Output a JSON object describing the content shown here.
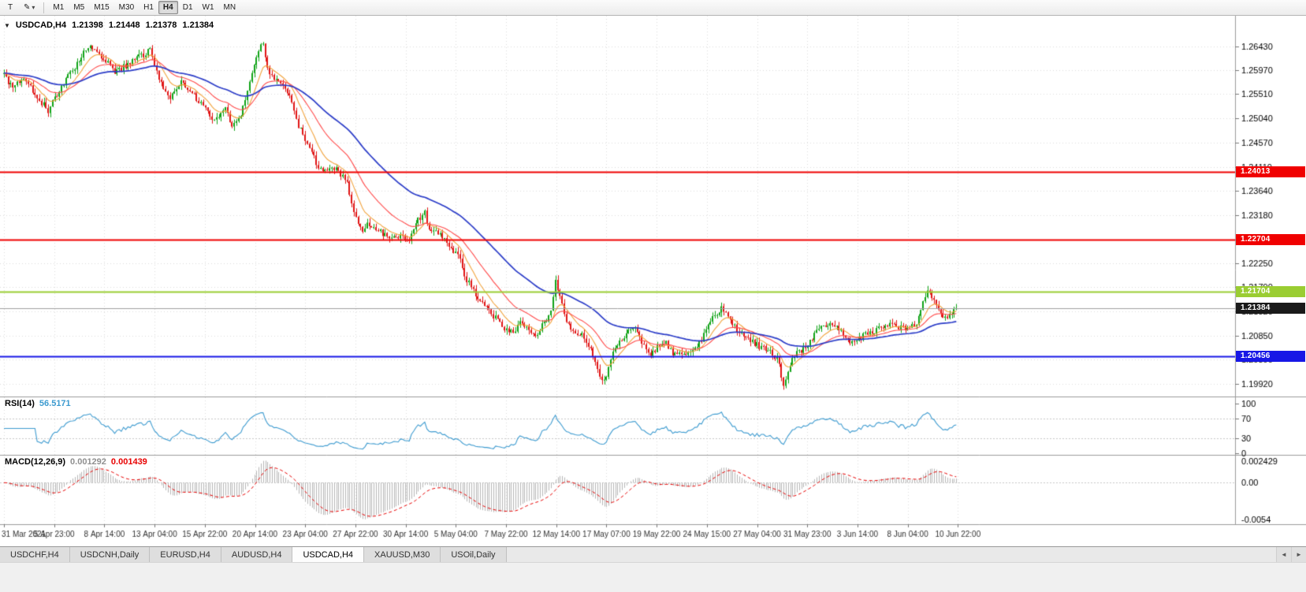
{
  "colors": {
    "up": "#0fa316",
    "down": "#e01414",
    "rsi": "#3d9bd0",
    "macd_hist": "#b6b6b6",
    "macd_signal": "#e80000",
    "badge_current": "#1a1a1a"
  },
  "toolbar": {
    "tool_label": "T",
    "draw_icon": "✎",
    "dropdown_icon": "▾",
    "timeframes": [
      "M1",
      "M5",
      "M15",
      "M30",
      "H1",
      "H4",
      "D1",
      "W1",
      "MN"
    ],
    "active_timeframe": "H4"
  },
  "chart": {
    "collapse_icon": "▼",
    "symbol": "USDCAD,H4",
    "ohlc": {
      "open": "1.21398",
      "high": "1.21448",
      "low": "1.21378",
      "close": "1.21384"
    }
  },
  "rsi": {
    "name": "RSI(14)",
    "value": "56.5171",
    "levels": [
      100,
      70,
      30,
      0
    ]
  },
  "macd": {
    "name": "MACD(12,26,9)",
    "value_main": "0.001292",
    "value_signal": "0.001439",
    "scale_labels": [
      "0.002429",
      "0.00",
      "-0.0054"
    ]
  },
  "time_axis": {
    "labels": [
      "31 Mar 2021",
      "5 Apr 23:00",
      "8 Apr 14:00",
      "13 Apr 04:00",
      "15 Apr 22:00",
      "20 Apr 14:00",
      "23 Apr 04:00",
      "27 Apr 22:00",
      "30 Apr 14:00",
      "5 May 04:00",
      "7 May 22:00",
      "12 May 14:00",
      "17 May 07:00",
      "19 May 22:00",
      "24 May 15:00",
      "27 May 04:00",
      "31 May 23:00",
      "3 Jun 14:00",
      "8 Jun 04:00",
      "10 Jun 22:00"
    ]
  },
  "tabs": {
    "items": [
      {
        "label": "USDCHF,H4"
      },
      {
        "label": "USDCNH,Daily"
      },
      {
        "label": "EURUSD,H4"
      },
      {
        "label": "AUDUSD,H4"
      },
      {
        "label": "USDCAD,H4"
      },
      {
        "label": "XAUUSD,M30"
      },
      {
        "label": "USOil,Daily"
      }
    ],
    "active_index": 4,
    "scroll_left": "◄",
    "scroll_right": "►"
  },
  "chart_data": {
    "type": "candlestick",
    "symbol": "USDCAD",
    "timeframe": "H4",
    "current_price": 1.21384,
    "visible_range": {
      "min": 1.19677,
      "max": 1.27023
    },
    "y_ticks": [
      1.2643,
      1.2597,
      1.2551,
      1.2504,
      1.2457,
      1.2411,
      1.2364,
      1.2318,
      1.2271,
      1.2225,
      1.2179,
      1.2132,
      1.2085,
      1.2039,
      1.1992
    ],
    "candle_count": 431,
    "synth": {
      "seed": 20210611,
      "noise": 0.0012,
      "wick": 0.0009
    },
    "price_path_anchors": [
      [
        0,
        1.259
      ],
      [
        4,
        1.256
      ],
      [
        9,
        1.2585
      ],
      [
        14,
        1.255
      ],
      [
        20,
        1.252
      ],
      [
        25,
        1.256
      ],
      [
        30,
        1.259
      ],
      [
        36,
        1.263
      ],
      [
        39,
        1.2641
      ],
      [
        44,
        1.2625
      ],
      [
        50,
        1.2595
      ],
      [
        55,
        1.2605
      ],
      [
        60,
        1.262
      ],
      [
        66,
        1.2636
      ],
      [
        71,
        1.257
      ],
      [
        75,
        1.254
      ],
      [
        80,
        1.2575
      ],
      [
        85,
        1.2555
      ],
      [
        91,
        1.252
      ],
      [
        94,
        1.2505
      ],
      [
        100,
        1.252
      ],
      [
        103,
        1.249
      ],
      [
        107,
        1.251
      ],
      [
        110,
        1.256
      ],
      [
        114,
        1.2625
      ],
      [
        117,
        1.2652
      ],
      [
        119,
        1.2598
      ],
      [
        123,
        1.2575
      ],
      [
        126,
        1.2572
      ],
      [
        130,
        1.254
      ],
      [
        133,
        1.249
      ],
      [
        137,
        1.2452
      ],
      [
        141,
        1.242
      ],
      [
        144,
        1.24
      ],
      [
        148,
        1.2412
      ],
      [
        151,
        1.24
      ],
      [
        155,
        1.2382
      ],
      [
        158,
        1.232
      ],
      [
        162,
        1.229
      ],
      [
        165,
        1.2302
      ],
      [
        169,
        1.2286
      ],
      [
        173,
        1.228
      ],
      [
        176,
        1.2272
      ],
      [
        180,
        1.2276
      ],
      [
        183,
        1.227
      ],
      [
        187,
        1.231
      ],
      [
        190,
        1.2322
      ],
      [
        192,
        1.2292
      ],
      [
        196,
        1.2282
      ],
      [
        199,
        1.2272
      ],
      [
        203,
        1.225
      ],
      [
        206,
        1.223
      ],
      [
        208,
        1.22
      ],
      [
        212,
        1.2172
      ],
      [
        215,
        1.215
      ],
      [
        219,
        1.2132
      ],
      [
        222,
        1.212
      ],
      [
        226,
        1.21
      ],
      [
        230,
        1.2092
      ],
      [
        233,
        1.211
      ],
      [
        237,
        1.21
      ],
      [
        240,
        1.2082
      ],
      [
        244,
        1.211
      ],
      [
        247,
        1.213
      ],
      [
        249,
        1.2192
      ],
      [
        252,
        1.215
      ],
      [
        254,
        1.2112
      ],
      [
        258,
        1.2092
      ],
      [
        262,
        1.2082
      ],
      [
        265,
        1.2062
      ],
      [
        269,
        1.2012
      ],
      [
        271,
        1.1996
      ],
      [
        274,
        1.2042
      ],
      [
        278,
        1.2072
      ],
      [
        281,
        1.2092
      ],
      [
        285,
        1.2096
      ],
      [
        288,
        1.2072
      ],
      [
        292,
        1.2052
      ],
      [
        295,
        1.2062
      ],
      [
        299,
        1.2072
      ],
      [
        302,
        1.2052
      ],
      [
        306,
        1.2046
      ],
      [
        310,
        1.2052
      ],
      [
        313,
        1.2062
      ],
      [
        317,
        1.2092
      ],
      [
        320,
        1.2122
      ],
      [
        324,
        1.2136
      ],
      [
        327,
        1.2122
      ],
      [
        331,
        1.2096
      ],
      [
        334,
        1.2082
      ],
      [
        338,
        1.2072
      ],
      [
        342,
        1.2062
      ],
      [
        345,
        1.2056
      ],
      [
        349,
        1.2042
      ],
      [
        352,
        1.1992
      ],
      [
        355,
        1.2032
      ],
      [
        358,
        1.2052
      ],
      [
        362,
        1.2062
      ],
      [
        365,
        1.2082
      ],
      [
        369,
        1.2102
      ],
      [
        373,
        1.2112
      ],
      [
        376,
        1.2102
      ],
      [
        380,
        1.2082
      ],
      [
        383,
        1.2072
      ],
      [
        387,
        1.2082
      ],
      [
        390,
        1.2092
      ],
      [
        394,
        1.2096
      ],
      [
        397,
        1.2102
      ],
      [
        401,
        1.2106
      ],
      [
        405,
        1.21
      ],
      [
        408,
        1.2096
      ],
      [
        412,
        1.2112
      ],
      [
        415,
        1.2152
      ],
      [
        418,
        1.2174
      ],
      [
        421,
        1.2142
      ],
      [
        424,
        1.2116
      ],
      [
        427,
        1.2126
      ],
      [
        430,
        1.2138
      ]
    ],
    "horizontal_lines": [
      {
        "price": 1.24013,
        "color": "#f00000",
        "width": 2,
        "label": "1.24013"
      },
      {
        "price": 1.22704,
        "color": "#f00000",
        "width": 2,
        "label": "1.22704"
      },
      {
        "price": 1.21704,
        "color": "#9acd32",
        "width": 2,
        "label": "1.21704"
      },
      {
        "price": 1.20456,
        "color": "#1717e6",
        "width": 2,
        "label": "1.20456"
      }
    ],
    "moving_averages": [
      {
        "period": 10,
        "color": "#f2a33c"
      },
      {
        "period": 25,
        "color": "#ff4a4a"
      },
      {
        "period": 60,
        "color": "#2b3cc8"
      }
    ],
    "indicators": [
      {
        "type": "RSI",
        "period": 14,
        "last": 56.5171
      },
      {
        "type": "MACD",
        "fast": 12,
        "slow": 26,
        "signal_period": 9,
        "last_macd": 0.001292,
        "last_signal": 0.001439
      }
    ]
  }
}
